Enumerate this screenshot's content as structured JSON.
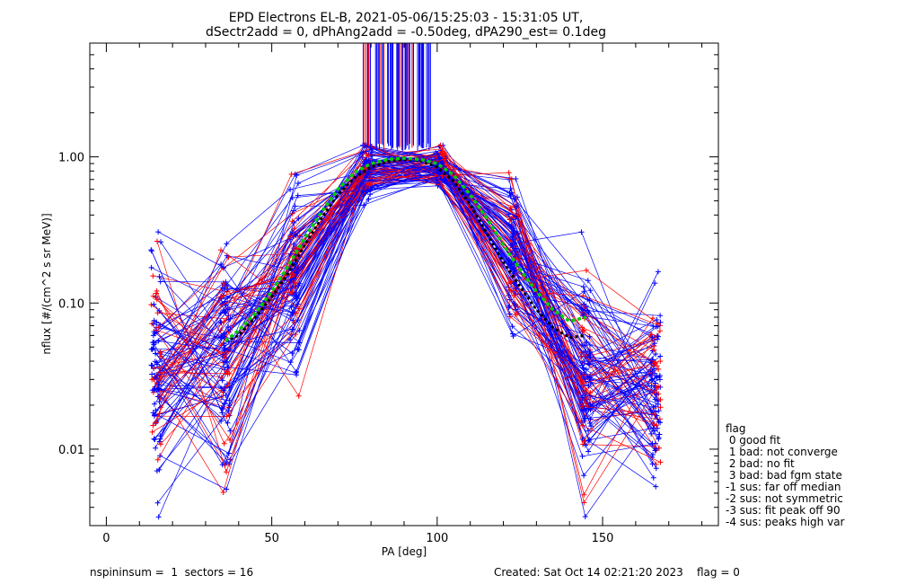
{
  "chart_data": {
    "type": "line",
    "title": "EPD Electrons EL-B, 2021-05-06/15:25:03 - 15:31:05 UT,",
    "subtitle": "dSectr2add = 0, dPhAng2add = -0.50deg, dPA290_est=   0.1deg",
    "xlabel": "PA [deg]",
    "ylabel": "nflux [#/(cm^2 s sr MeV)]",
    "xlim": [
      -5,
      185
    ],
    "ylim": [
      0.003,
      6
    ],
    "yscale": "log",
    "x_ticks": [
      {
        "value": 0,
        "label": "0"
      },
      {
        "value": 50,
        "label": "50"
      },
      {
        "value": 100,
        "label": "100"
      },
      {
        "value": 150,
        "label": "150"
      }
    ],
    "y_ticks": [
      {
        "value": 0.01,
        "label": "0.01"
      },
      {
        "value": 0.1,
        "label": "0.10"
      },
      {
        "value": 1.0,
        "label": "1.00"
      }
    ],
    "sector_pa": [
      15,
      36,
      57,
      79,
      101,
      123,
      145,
      166
    ],
    "series_colors": {
      "spin_a": "#ff0000",
      "spin_b": "#0000ff",
      "fit": "#00cc00",
      "median": "#000000"
    },
    "fit_curve": {
      "x": [
        36,
        40,
        45,
        50,
        55,
        60,
        65,
        70,
        75,
        80,
        85,
        90,
        95,
        100,
        105,
        110,
        115,
        120,
        125,
        130,
        135,
        140,
        145
      ],
      "y": [
        0.055,
        0.065,
        0.085,
        0.12,
        0.18,
        0.28,
        0.42,
        0.6,
        0.78,
        0.9,
        0.96,
        0.98,
        0.96,
        0.9,
        0.75,
        0.55,
        0.38,
        0.25,
        0.17,
        0.12,
        0.09,
        0.075,
        0.08
      ]
    },
    "median_curve": {
      "x": [
        36,
        40,
        45,
        50,
        55,
        60,
        65,
        70,
        75,
        80,
        85,
        90,
        95,
        100,
        105,
        110,
        115,
        120,
        125,
        130,
        135,
        140,
        145
      ],
      "y": [
        0.055,
        0.06,
        0.08,
        0.11,
        0.16,
        0.25,
        0.38,
        0.55,
        0.72,
        0.85,
        0.93,
        0.96,
        0.94,
        0.85,
        0.68,
        0.47,
        0.3,
        0.19,
        0.13,
        0.09,
        0.068,
        0.058,
        0.06
      ]
    },
    "legend": {
      "title": "flag",
      "entries": [
        " 0 good fit",
        " 1 bad: not converge",
        " 2 bad: no fit",
        " 3 bad: bad fgm state",
        "-1 sus: far off median",
        "-2 sus: not symmetric",
        "-3 sus: fit peak off 90",
        "-4 sus: peaks high var"
      ]
    }
  },
  "footer": {
    "left": "nspininsum =  1  sectors = 16",
    "right": "Created: Sat Oct 14 02:21:20 2023    flag = 0"
  }
}
